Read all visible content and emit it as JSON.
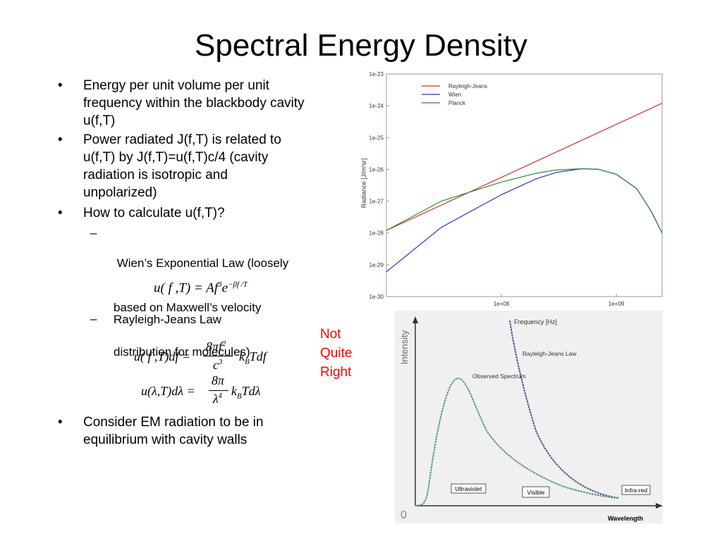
{
  "slide": {
    "title": "Spectral Energy Density",
    "bullet_char": "•",
    "dash_char": "–",
    "bullets": [
      {
        "lines": [
          "Energy per unit volume per unit",
          "frequency within the blackbody cavity",
          "u(f,T)"
        ]
      },
      {
        "lines": [
          "Power radiated J(f,T) is related to",
          "u(f,T) by J(f,T)=u(f,T)c/4 (cavity",
          "radiation is isotropic and",
          "unpolarized)"
        ]
      },
      {
        "lines": [
          "How to calculate u(f,T)?"
        ]
      },
      {
        "lines": [
          "Consider EM radiation to be in",
          "equilibrium with cavity walls"
        ]
      }
    ],
    "subbullets": [
      {
        "lines": [
          " Wien’s Exponential Law (loosely",
          "based on Maxwell’s velocity",
          "distribution for molecules)"
        ]
      },
      {
        "lines": [
          "Rayleigh-Jeans Law"
        ]
      }
    ],
    "equations": {
      "wien_lhs": "u( f ,T) = Af",
      "wien_exp3": "3",
      "wien_e": "e",
      "wien_exp": "−βf /T",
      "rj_lhs": "u( f ,T)df =",
      "rj_num": "8πf",
      "rj_num_exp": "2",
      "rj_den": "c",
      "rj_den_exp": "3",
      "rj_k": "k",
      "rj_B": "B",
      "rj_tail": "Tdf",
      "rjl_lhs": "u(λ,T)dλ =",
      "rjl_num": "8π",
      "rjl_den": "λ",
      "rjl_den_exp": "4",
      "rjl_k": "k",
      "rjl_B": "B",
      "rjl_tail": "Tdλ"
    },
    "note_lines": [
      "Not",
      "Quite",
      "Right"
    ],
    "note_color": "#ff0000"
  },
  "chart_data": [
    {
      "type": "line",
      "ylabel": "Radiance [J/m²sr]",
      "x_scale": "log",
      "y_scale": "log",
      "x_ticks": [
        "1e+08",
        "1e+09"
      ],
      "y_ticks": [
        "1e-23",
        "1e-24",
        "1e-25",
        "1e-26",
        "1e-27",
        "1e-28",
        "1e-29",
        "1e-30"
      ],
      "xlim": [
        10000000,
        2500000000
      ],
      "ylim": [
        1e-30,
        1e-23
      ],
      "legend_position": "top-left",
      "series": [
        {
          "name": "Rayleigh-Jeans",
          "color": "#cc3333",
          "x": [
            10000000,
            2500000000
          ],
          "y": [
            1.2e-28,
            1.2e-24
          ]
        },
        {
          "name": "Wien",
          "color": "#3333aa",
          "x": [
            10000000,
            30000000,
            100000000,
            200000000,
            300000000,
            500000000,
            700000000,
            1000000000,
            1500000000,
            2000000000,
            2500000000
          ],
          "y": [
            6e-30,
            1.5e-28,
            1.6e-27,
            5e-27,
            8e-27,
            1.05e-26,
            1e-26,
            7e-27,
            2.5e-27,
            5e-28,
            1e-28
          ]
        },
        {
          "name": "Planck",
          "color": "#338833",
          "x": [
            10000000,
            30000000,
            100000000,
            200000000,
            300000000,
            500000000,
            700000000,
            1000000000,
            1500000000,
            2000000000,
            2500000000
          ],
          "y": [
            1.2e-28,
            1e-27,
            4e-27,
            7.5e-27,
            9.5e-27,
            1.05e-26,
            1e-26,
            7e-27,
            2.5e-27,
            5e-28,
            1e-28
          ]
        }
      ]
    },
    {
      "type": "line",
      "xlabel": "Wavelength",
      "ylabel": "Intensity",
      "origin_label": "0",
      "curves": [
        {
          "name": "Rayleigh-Jeans Law",
          "color": "#55558a"
        },
        {
          "name": "Observed Spectrum",
          "color": "#5a9a76"
        }
      ],
      "region_labels": [
        "Ultraviolet",
        "Visible",
        "Infra-red"
      ],
      "annotation": "Frequency [Hz]"
    }
  ]
}
